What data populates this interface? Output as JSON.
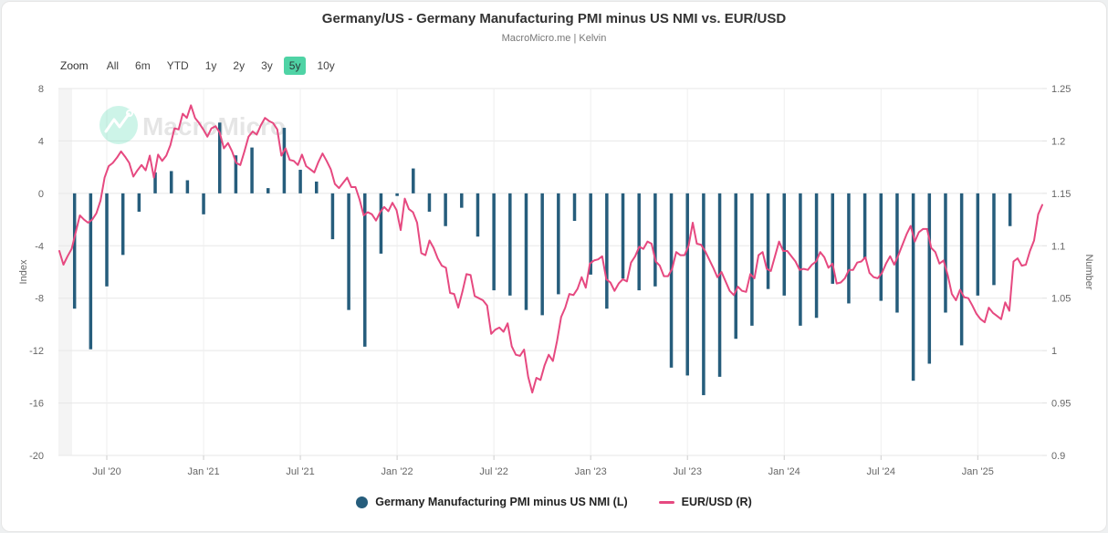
{
  "header": {
    "title": "Germany/US - Germany Manufacturing PMI minus US NMI vs. EUR/USD",
    "subtitle": "MacroMicro.me | Kelvin"
  },
  "toolbar": {
    "zoom_label": "Zoom",
    "ranges": [
      "All",
      "6m",
      "YTD",
      "1y",
      "2y",
      "3y",
      "5y",
      "10y"
    ],
    "selected_range": "5y",
    "selected_bg_color": "#4fd3a5"
  },
  "watermark": {
    "text": "MacroMicro",
    "logo_icon": "zigzag-mountain-icon",
    "logo_color": "#6fe0bd"
  },
  "legend": {
    "items": [
      {
        "label": "Germany Manufacturing PMI minus US NMI (L)",
        "marker": "circle",
        "color": "#265d7c"
      },
      {
        "label": "EUR/USD (R)",
        "marker": "line",
        "color": "#e64980"
      }
    ]
  },
  "chart_data": {
    "type": "bar",
    "subtype": "combo-bar-line-dual-axis",
    "title": "Germany/US - Germany Manufacturing PMI minus US NMI vs. EUR/USD",
    "grid": true,
    "left_axis": {
      "title": "Index",
      "ticks": [
        8,
        4,
        0,
        -4,
        -8,
        -12,
        -16,
        -20
      ],
      "range": [
        -20,
        8
      ]
    },
    "right_axis": {
      "title": "Number",
      "ticks": [
        1.25,
        1.2,
        1.15,
        1.1,
        1.05,
        1,
        0.95,
        0.9
      ],
      "range": [
        0.9,
        1.25
      ]
    },
    "x_axis": {
      "ticks": [
        "Jul '20",
        "Jan '21",
        "Jul '21",
        "Jan '22",
        "Jul '22",
        "Jan '23",
        "Jul '23",
        "Jan '24",
        "Jul '24",
        "Jan '25"
      ],
      "tick_month_index": [
        2,
        8,
        14,
        20,
        26,
        32,
        38,
        44,
        50,
        56
      ]
    },
    "series": [
      {
        "name": "Germany Manufacturing PMI minus US NMI (L)",
        "type": "column",
        "axis": "left",
        "color": "#265d7c",
        "start": "2020-05",
        "frequency": "monthly",
        "values": [
          -8.8,
          -11.9,
          -7.1,
          -4.7,
          -1.4,
          1.6,
          1.7,
          1.0,
          -1.6,
          5.4,
          2.9,
          3.5,
          0.4,
          5.0,
          1.8,
          0.9,
          -3.5,
          -8.9,
          -11.7,
          -4.6,
          -0.2,
          1.9,
          -1.4,
          -2.5,
          -1.1,
          -3.3,
          -7.4,
          -7.8,
          -8.9,
          -9.3,
          -7.7,
          -2.1,
          -6.2,
          -8.8,
          -6.5,
          -7.4,
          -7.1,
          -13.3,
          -13.9,
          -15.4,
          -14.0,
          -11.1,
          -10.1,
          -7.3,
          -7.8,
          -10.1,
          -9.5,
          -6.9,
          -8.4,
          -5.0,
          -8.2,
          -9.1,
          -14.3,
          -13.0,
          -9.1,
          -11.6,
          -7.8,
          -7.0,
          -2.5
        ]
      },
      {
        "name": "EUR/USD (R)",
        "type": "line",
        "axis": "right",
        "color": "#e64980",
        "start": "2020-05",
        "frequency": "weekly",
        "values": [
          1.095,
          1.082,
          1.09,
          1.097,
          1.113,
          1.129,
          1.125,
          1.122,
          1.125,
          1.131,
          1.143,
          1.165,
          1.176,
          1.179,
          1.184,
          1.19,
          1.185,
          1.179,
          1.166,
          1.172,
          1.177,
          1.172,
          1.186,
          1.165,
          1.187,
          1.181,
          1.186,
          1.196,
          1.212,
          1.211,
          1.226,
          1.222,
          1.234,
          1.222,
          1.217,
          1.211,
          1.204,
          1.212,
          1.214,
          1.208,
          1.193,
          1.198,
          1.19,
          1.179,
          1.177,
          1.19,
          1.204,
          1.209,
          1.206,
          1.215,
          1.222,
          1.219,
          1.217,
          1.211,
          1.186,
          1.193,
          1.182,
          1.181,
          1.177,
          1.187,
          1.176,
          1.173,
          1.17,
          1.18,
          1.188,
          1.181,
          1.173,
          1.159,
          1.155,
          1.16,
          1.165,
          1.156,
          1.156,
          1.144,
          1.129,
          1.132,
          1.13,
          1.124,
          1.132,
          1.137,
          1.133,
          1.141,
          1.134,
          1.115,
          1.145,
          1.135,
          1.132,
          1.122,
          1.093,
          1.091,
          1.105,
          1.098,
          1.088,
          1.081,
          1.079,
          1.055,
          1.054,
          1.041,
          1.056,
          1.073,
          1.072,
          1.052,
          1.05,
          1.048,
          1.043,
          1.016,
          1.02,
          1.022,
          1.018,
          1.026,
          1.004,
          0.996,
          0.995,
          1.001,
          0.975,
          0.96,
          0.974,
          0.972,
          0.986,
          0.996,
          0.99,
          1.009,
          1.032,
          1.041,
          1.054,
          1.053,
          1.059,
          1.07,
          1.06,
          1.083,
          1.086,
          1.087,
          1.09,
          1.068,
          1.065,
          1.057,
          1.064,
          1.068,
          1.066,
          1.084,
          1.09,
          1.099,
          1.097,
          1.104,
          1.102,
          1.085,
          1.081,
          1.071,
          1.071,
          1.078,
          1.094,
          1.091,
          1.091,
          1.1,
          1.122,
          1.102,
          1.101,
          1.095,
          1.087,
          1.079,
          1.07,
          1.075,
          1.066,
          1.057,
          1.053,
          1.061,
          1.057,
          1.056,
          1.073,
          1.069,
          1.091,
          1.094,
          1.078,
          1.076,
          1.09,
          1.104,
          1.095,
          1.095,
          1.09,
          1.085,
          1.077,
          1.078,
          1.077,
          1.082,
          1.085,
          1.094,
          1.089,
          1.079,
          1.083,
          1.064,
          1.065,
          1.069,
          1.077,
          1.077,
          1.084,
          1.085,
          1.089,
          1.074,
          1.07,
          1.069,
          1.074,
          1.083,
          1.09,
          1.082,
          1.091,
          1.101,
          1.111,
          1.119,
          1.104,
          1.113,
          1.116,
          1.116,
          1.098,
          1.094,
          1.083,
          1.086,
          1.072,
          1.054,
          1.048,
          1.058,
          1.051,
          1.05,
          1.043,
          1.035,
          1.03,
          1.027,
          1.041,
          1.036,
          1.033,
          1.03,
          1.046,
          1.038,
          1.085,
          1.088,
          1.081,
          1.082,
          1.095,
          1.105,
          1.13,
          1.139
        ]
      }
    ]
  }
}
